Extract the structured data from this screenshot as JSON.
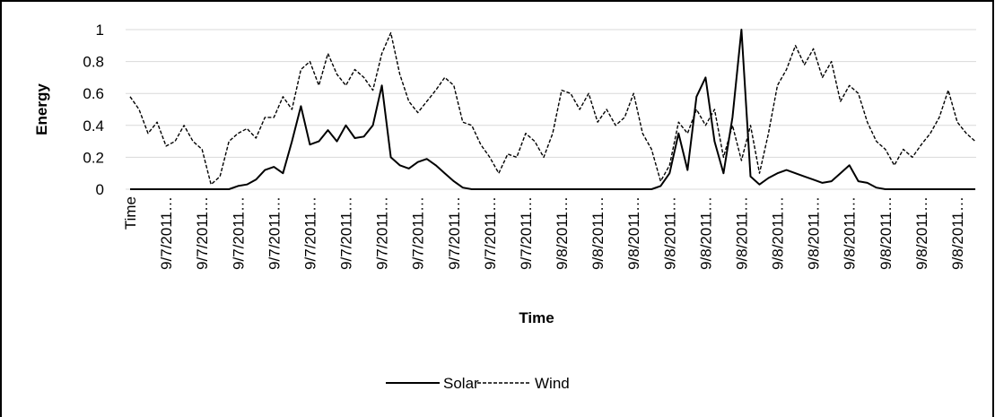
{
  "chart_data": {
    "type": "line",
    "x_label": "Time",
    "y_label": "Energy",
    "categories": [
      "Time",
      null,
      null,
      null,
      "9/7/2011…",
      null,
      null,
      null,
      "9/7/2011…",
      null,
      null,
      null,
      "9/7/2011…",
      null,
      null,
      null,
      "9/7/2011…",
      null,
      null,
      null,
      "9/7/2011…",
      null,
      null,
      null,
      "9/7/2011…",
      null,
      null,
      null,
      "9/7/2011…",
      null,
      null,
      null,
      "9/7/2011…",
      null,
      null,
      null,
      "9/7/2011…",
      null,
      null,
      null,
      "9/7/2011…",
      null,
      null,
      null,
      "9/7/2011…",
      null,
      null,
      null,
      "9/8/2011…",
      null,
      null,
      null,
      "9/8/2011…",
      null,
      null,
      null,
      "9/8/2011…",
      null,
      null,
      null,
      "9/8/2011…",
      null,
      null,
      null,
      "9/8/2011…",
      null,
      null,
      null,
      "9/8/2011…",
      null,
      null,
      null,
      "9/8/2011…",
      null,
      null,
      null,
      "9/8/2011…",
      null,
      null,
      null,
      "9/8/2011…",
      null,
      null,
      null,
      "9/8/2011…",
      null,
      null,
      null,
      "9/8/2011…",
      null,
      null,
      null,
      "9/8/2011…",
      null,
      null
    ],
    "series": [
      {
        "name": "Solar",
        "color": "#000000",
        "line_style": "solid",
        "values": [
          0,
          0,
          0,
          0,
          0,
          0,
          0,
          0,
          0,
          0,
          0,
          0,
          0.02,
          0.03,
          0.06,
          0.12,
          0.14,
          0.1,
          0.3,
          0.52,
          0.28,
          0.3,
          0.37,
          0.3,
          0.4,
          0.32,
          0.33,
          0.4,
          0.65,
          0.2,
          0.15,
          0.13,
          0.17,
          0.19,
          0.15,
          0.1,
          0.05,
          0.01,
          0,
          0,
          0,
          0,
          0,
          0,
          0,
          0,
          0,
          0,
          0,
          0,
          0,
          0,
          0,
          0,
          0,
          0,
          0,
          0,
          0,
          0.02,
          0.1,
          0.35,
          0.12,
          0.58,
          0.7,
          0.3,
          0.1,
          0.45,
          1,
          0.08,
          0.03,
          0.07,
          0.1,
          0.12,
          0.1,
          0.08,
          0.06,
          0.04,
          0.05,
          0.1,
          0.15,
          0.05,
          0.04,
          0.01,
          0,
          0,
          0,
          0,
          0,
          0,
          0,
          0,
          0,
          0,
          0
        ]
      },
      {
        "name": "Wind",
        "color": "#000000",
        "line_style": "dashed",
        "values": [
          0.58,
          0.5,
          0.35,
          0.42,
          0.27,
          0.3,
          0.4,
          0.3,
          0.25,
          0.03,
          0.08,
          0.3,
          0.35,
          0.38,
          0.32,
          0.45,
          0.45,
          0.58,
          0.5,
          0.75,
          0.8,
          0.65,
          0.85,
          0.72,
          0.65,
          0.75,
          0.7,
          0.62,
          0.85,
          0.98,
          0.72,
          0.55,
          0.48,
          0.55,
          0.62,
          0.7,
          0.65,
          0.42,
          0.4,
          0.28,
          0.2,
          0.1,
          0.22,
          0.2,
          0.35,
          0.3,
          0.2,
          0.35,
          0.62,
          0.6,
          0.5,
          0.6,
          0.42,
          0.5,
          0.4,
          0.45,
          0.6,
          0.35,
          0.25,
          0.05,
          0.15,
          0.42,
          0.35,
          0.5,
          0.4,
          0.5,
          0.2,
          0.4,
          0.18,
          0.4,
          0.1,
          0.35,
          0.65,
          0.75,
          0.9,
          0.78,
          0.88,
          0.7,
          0.8,
          0.55,
          0.65,
          0.6,
          0.42,
          0.3,
          0.25,
          0.15,
          0.25,
          0.2,
          0.28,
          0.35,
          0.45,
          0.62,
          0.42,
          0.35,
          0.3
        ]
      }
    ],
    "ylim": [
      0,
      1
    ],
    "yticks": [
      0,
      0.2,
      0.4,
      0.6,
      0.8,
      1
    ],
    "grid": true,
    "legend": "bottom"
  }
}
